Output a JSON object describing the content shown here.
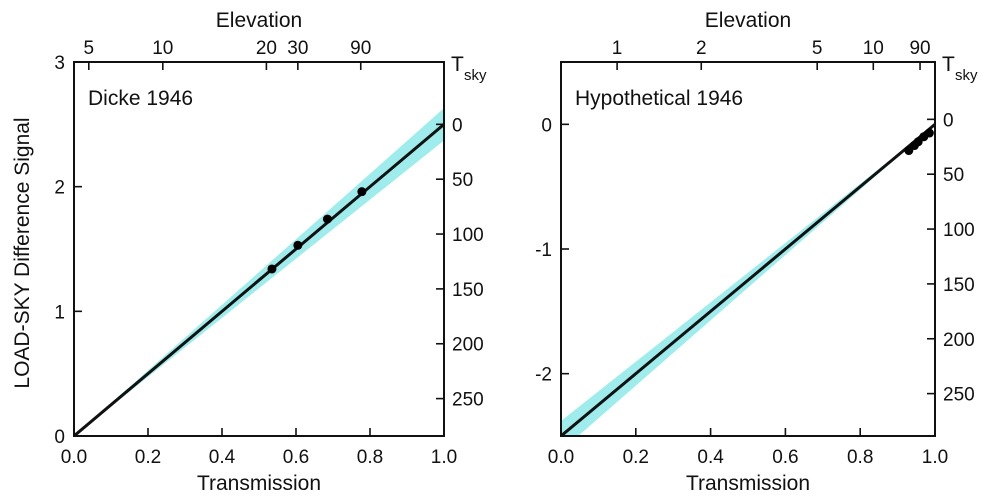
{
  "colors": {
    "band": "#9fecec",
    "line": "#111111",
    "points": "#000000"
  },
  "chart_data": [
    {
      "type": "line",
      "annotation": "Dicke 1946",
      "xlabel": "Transmission",
      "ylabel": "LOAD-SKY Difference Signal",
      "top_axis_label": "Elevation",
      "right_axis_label": "T",
      "right_axis_label_sub": "sky",
      "xlim": [
        0.0,
        1.0
      ],
      "ylim": [
        0,
        3
      ],
      "grid": false,
      "x_ticks": [
        0.0,
        0.2,
        0.4,
        0.6,
        0.8,
        1.0
      ],
      "x_tick_labels": [
        "0.0",
        "0.2",
        "0.4",
        "0.6",
        "0.8",
        "1.0"
      ],
      "y_ticks": [
        0,
        1,
        2,
        3
      ],
      "y_tick_labels": [
        "0",
        "1",
        "2",
        "3"
      ],
      "top_ticks": [
        {
          "transmission": 0.04,
          "label": "5"
        },
        {
          "transmission": 0.24,
          "label": "10"
        },
        {
          "transmission": 0.52,
          "label": "20"
        },
        {
          "transmission": 0.605,
          "label": "30"
        },
        {
          "transmission": 0.775,
          "label": "90"
        }
      ],
      "right_ticks": [
        {
          "value": 2.5,
          "label": "0"
        },
        {
          "value": 2.06,
          "label": "50"
        },
        {
          "value": 1.62,
          "label": "100"
        },
        {
          "value": 1.18,
          "label": "150"
        },
        {
          "value": 0.74,
          "label": "200"
        },
        {
          "value": 0.3,
          "label": "250"
        }
      ],
      "fit_line": {
        "x": [
          0.0,
          1.0
        ],
        "y": [
          0.0,
          2.5
        ]
      },
      "band": {
        "x": [
          0.0,
          1.0
        ],
        "lower": [
          0.0,
          2.37
        ],
        "upper": [
          0.0,
          2.63
        ]
      },
      "points": {
        "x": [
          0.535,
          0.605,
          0.685,
          0.778
        ],
        "y": [
          1.34,
          1.53,
          1.74,
          1.96
        ]
      }
    },
    {
      "type": "line",
      "annotation": "Hypothetical 1946",
      "xlabel": "Transmission",
      "ylabel": "",
      "top_axis_label": "Elevation",
      "right_axis_label": "T",
      "right_axis_label_sub": "sky",
      "xlim": [
        0.0,
        1.0
      ],
      "ylim": [
        -2.5,
        0.5
      ],
      "grid": false,
      "x_ticks": [
        0.0,
        0.2,
        0.4,
        0.6,
        0.8,
        1.0
      ],
      "x_tick_labels": [
        "0.0",
        "0.2",
        "0.4",
        "0.6",
        "0.8",
        "1.0"
      ],
      "y_ticks": [
        -2,
        -1,
        0
      ],
      "y_tick_labels": [
        "-2",
        "-1",
        "0"
      ],
      "top_ticks": [
        {
          "transmission": 0.15,
          "label": "1"
        },
        {
          "transmission": 0.375,
          "label": "2"
        },
        {
          "transmission": 0.685,
          "label": "5"
        },
        {
          "transmission": 0.835,
          "label": "10"
        },
        {
          "transmission": 0.96,
          "label": "90"
        }
      ],
      "right_ticks": [
        {
          "value": 0.04,
          "label": "0"
        },
        {
          "value": -0.4,
          "label": "50"
        },
        {
          "value": -0.84,
          "label": "100"
        },
        {
          "value": -1.28,
          "label": "150"
        },
        {
          "value": -1.72,
          "label": "200"
        },
        {
          "value": -2.16,
          "label": "250"
        }
      ],
      "fit_line": {
        "x": [
          0.0,
          1.0
        ],
        "y": [
          -2.5,
          0.0
        ]
      },
      "band": {
        "x": [
          0.0,
          1.0
        ],
        "lower": [
          -2.62,
          0.0
        ],
        "upper": [
          -2.38,
          0.0
        ]
      },
      "points": {
        "x": [
          0.93,
          0.945,
          0.955,
          0.97,
          0.985
        ],
        "y": [
          -0.21,
          -0.17,
          -0.14,
          -0.1,
          -0.07
        ]
      }
    }
  ]
}
